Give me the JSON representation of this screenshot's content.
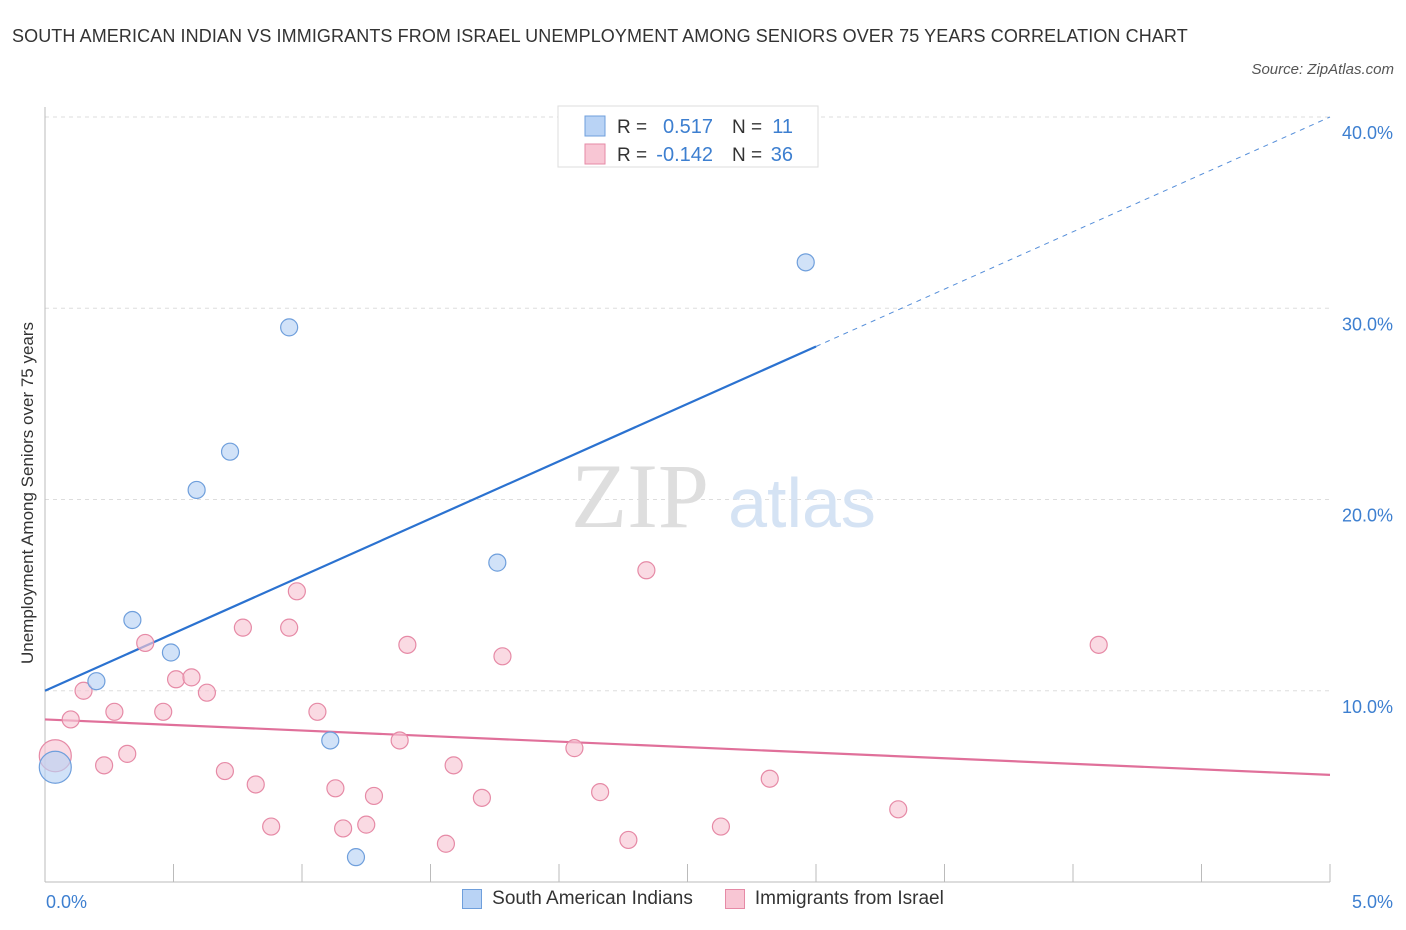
{
  "title": "SOUTH AMERICAN INDIAN VS IMMIGRANTS FROM ISRAEL UNEMPLOYMENT AMONG SENIORS OVER 75 YEARS CORRELATION CHART",
  "source": "Source: ZipAtlas.com",
  "watermark": {
    "zip": "ZIP",
    "atlas": "atlas"
  },
  "legend_box": {
    "rows": [
      {
        "r_label": "R =",
        "r_value": "0.517",
        "n_label": "N =",
        "n_value": "11"
      },
      {
        "r_label": "R =",
        "r_value": "-0.142",
        "n_label": "N =",
        "n_value": "36"
      }
    ]
  },
  "colors": {
    "blue_fill": "#b9d3f5",
    "blue_stroke": "#6f9fdc",
    "blue_line": "#2b72d0",
    "pink_fill": "#f8c6d4",
    "pink_stroke": "#e68aa6",
    "pink_line": "#e0709a",
    "tick_text": "#3d7fd0",
    "grid": "#dddddd"
  },
  "chart_data": {
    "type": "scatter",
    "title": "SOUTH AMERICAN INDIAN VS IMMIGRANTS FROM ISRAEL UNEMPLOYMENT AMONG SENIORS OVER 75 YEARS CORRELATION CHART",
    "xlabel": "",
    "ylabel": "Unemployment Among Seniors over 75 years",
    "xlim": [
      0,
      5
    ],
    "ylim": [
      0,
      40
    ],
    "x_tick_labels": [
      "0.0%",
      "5.0%"
    ],
    "y_ticks": [
      10,
      20,
      30,
      40
    ],
    "y_tick_labels": [
      "10.0%",
      "20.0%",
      "30.0%",
      "40.0%"
    ],
    "grid": true,
    "legend_position": "top-center",
    "series": [
      {
        "name": "South American Indians",
        "color": "#b9d3f5",
        "r": 0.517,
        "n": 11,
        "trend": {
          "x0": 0,
          "y0": 10.0,
          "x1": 3.0,
          "y1": 28.0,
          "dash_to_x": 5.0,
          "dash_to_y": 40.0
        },
        "points": [
          {
            "x": 0.04,
            "y": 6.0,
            "big": true
          },
          {
            "x": 0.2,
            "y": 10.5
          },
          {
            "x": 0.34,
            "y": 13.7
          },
          {
            "x": 0.49,
            "y": 12.0
          },
          {
            "x": 0.59,
            "y": 20.5
          },
          {
            "x": 0.72,
            "y": 22.5
          },
          {
            "x": 0.95,
            "y": 29.0
          },
          {
            "x": 1.11,
            "y": 7.4
          },
          {
            "x": 1.21,
            "y": 1.3
          },
          {
            "x": 1.76,
            "y": 16.7
          },
          {
            "x": 2.96,
            "y": 32.4
          }
        ]
      },
      {
        "name": "Immigrants from Israel",
        "color": "#f8c6d4",
        "r": -0.142,
        "n": 36,
        "trend": {
          "x0": 0,
          "y0": 8.5,
          "x1": 5.0,
          "y1": 5.6
        },
        "points": [
          {
            "x": 0.04,
            "y": 6.6,
            "big": true
          },
          {
            "x": 0.1,
            "y": 8.5
          },
          {
            "x": 0.15,
            "y": 10.0
          },
          {
            "x": 0.23,
            "y": 6.1
          },
          {
            "x": 0.27,
            "y": 8.9
          },
          {
            "x": 0.32,
            "y": 6.7
          },
          {
            "x": 0.39,
            "y": 12.5
          },
          {
            "x": 0.46,
            "y": 8.9
          },
          {
            "x": 0.51,
            "y": 10.6
          },
          {
            "x": 0.57,
            "y": 10.7
          },
          {
            "x": 0.63,
            "y": 9.9
          },
          {
            "x": 0.7,
            "y": 5.8
          },
          {
            "x": 0.77,
            "y": 13.3
          },
          {
            "x": 0.82,
            "y": 5.1
          },
          {
            "x": 0.88,
            "y": 2.9
          },
          {
            "x": 0.95,
            "y": 13.3
          },
          {
            "x": 0.98,
            "y": 15.2
          },
          {
            "x": 1.06,
            "y": 8.9
          },
          {
            "x": 1.13,
            "y": 4.9
          },
          {
            "x": 1.16,
            "y": 2.8
          },
          {
            "x": 1.25,
            "y": 3.0
          },
          {
            "x": 1.28,
            "y": 4.5
          },
          {
            "x": 1.38,
            "y": 7.4
          },
          {
            "x": 1.41,
            "y": 12.4
          },
          {
            "x": 1.56,
            "y": 2.0
          },
          {
            "x": 1.59,
            "y": 6.1
          },
          {
            "x": 1.7,
            "y": 4.4
          },
          {
            "x": 1.78,
            "y": 11.8
          },
          {
            "x": 2.06,
            "y": 7.0
          },
          {
            "x": 2.16,
            "y": 4.7
          },
          {
            "x": 2.27,
            "y": 2.2
          },
          {
            "x": 2.34,
            "y": 16.3
          },
          {
            "x": 2.63,
            "y": 2.9
          },
          {
            "x": 2.82,
            "y": 5.4
          },
          {
            "x": 3.32,
            "y": 3.8
          },
          {
            "x": 4.1,
            "y": 12.4
          }
        ]
      }
    ]
  }
}
